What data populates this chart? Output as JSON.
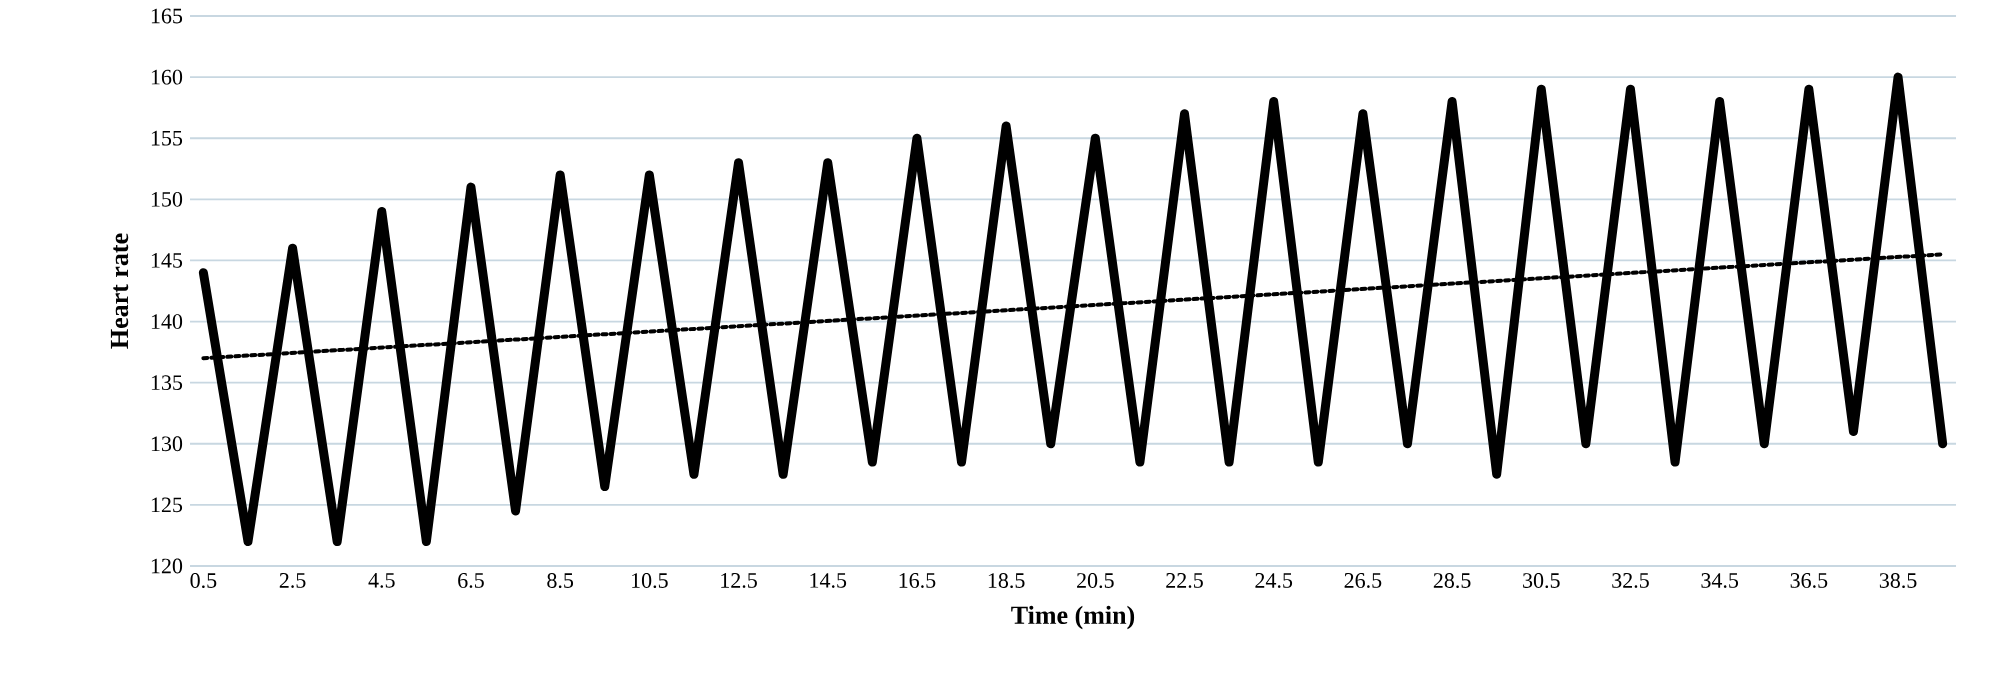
{
  "chart_data": {
    "type": "line",
    "xlabel": "Time (min)",
    "ylabel": "Heart rate",
    "xlim": [
      0.2,
      39.8
    ],
    "ylim": [
      120,
      165
    ],
    "xticks": [
      0.5,
      2.5,
      4.5,
      6.5,
      8.5,
      10.5,
      12.5,
      14.5,
      16.5,
      18.5,
      20.5,
      22.5,
      24.5,
      26.5,
      28.5,
      30.5,
      32.5,
      34.5,
      36.5,
      38.5
    ],
    "yticks": [
      120,
      125,
      130,
      135,
      140,
      145,
      150,
      155,
      160,
      165
    ],
    "grid": "y",
    "legend": false,
    "marker": "none",
    "series": [
      {
        "color": "#000000",
        "line_style": "solid",
        "x": [
          0.5,
          1.5,
          2.5,
          3.5,
          4.5,
          5.5,
          6.5,
          7.5,
          8.5,
          9.5,
          10.5,
          11.5,
          12.5,
          13.5,
          14.5,
          15.5,
          16.5,
          17.5,
          18.5,
          19.5,
          20.5,
          21.5,
          22.5,
          23.5,
          24.5,
          25.5,
          26.5,
          27.5,
          28.5,
          29.5,
          30.5,
          31.5,
          32.5,
          33.5,
          34.5,
          35.5,
          36.5,
          37.5,
          38.5,
          39.5
        ],
        "values": [
          144,
          122,
          146,
          122,
          149,
          122,
          151,
          124.5,
          152,
          126.5,
          152,
          127.5,
          153,
          127.5,
          153,
          128.5,
          155,
          128.5,
          156,
          130,
          155,
          128.5,
          157,
          128.5,
          158,
          128.5,
          157,
          130,
          158,
          127.5,
          159,
          130,
          159,
          128.5,
          158,
          130,
          159,
          131,
          160,
          130
        ]
      },
      {
        "type": "line",
        "color": "#000000",
        "line_style": "dotted",
        "x": [
          0.5,
          39.5
        ],
        "values": [
          137,
          145.5
        ]
      }
    ]
  }
}
